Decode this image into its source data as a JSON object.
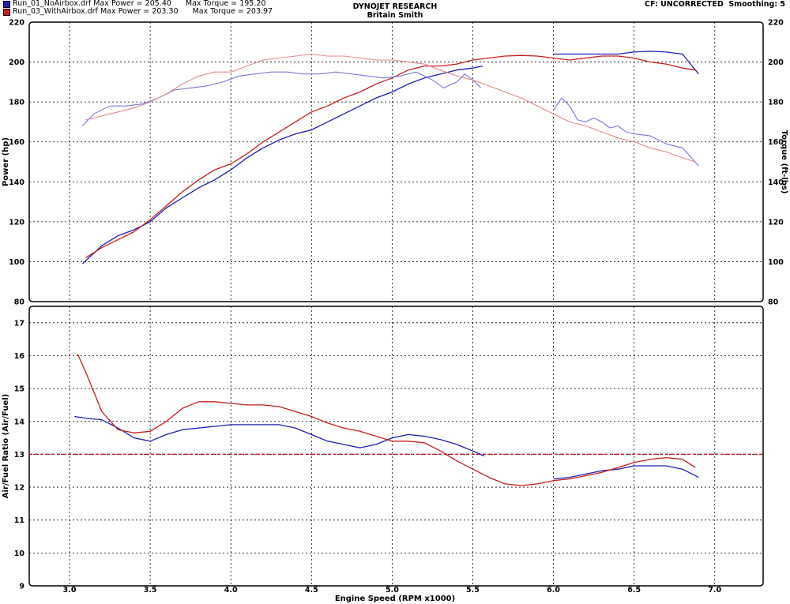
{
  "header": {
    "run1_file": "Run_01_NoAirbox.drf",
    "run1_power_label": "Max Power = 205.40",
    "run1_torque_label": "Max Torque = 195.20",
    "run2_file": "Run_03_WithAirbox.drf",
    "run2_power_label": "Max Power = 203.30",
    "run2_torque_label": "Max Torque = 203.97",
    "company": "DYNOJET RESEARCH",
    "operator": "Britain Smith",
    "cf": "CF: UNCORRECTED",
    "smoothing": "Smoothing: 5"
  },
  "colors": {
    "run1": "#1e1eb4",
    "run2": "#c81e1e",
    "run1_torque": "#7878dc",
    "run2_torque": "#e08c8c"
  },
  "chart_data": [
    {
      "type": "line",
      "title": "DYNOJET RESEARCH",
      "subtitle": "Britain Smith",
      "ylabel": "Power (hp)",
      "y2label": "Torque (ft-lbs)",
      "xlim": [
        2.75,
        7.3
      ],
      "ylim": [
        80,
        220
      ],
      "y2lim": [
        80,
        220
      ],
      "xticks": [
        "3.0",
        "3.5",
        "4.0",
        "4.5",
        "5.0",
        "5.5",
        "6.0",
        "6.5",
        "7.0"
      ],
      "yticks": [
        "80",
        "100",
        "120",
        "140",
        "160",
        "180",
        "200",
        "220"
      ],
      "grid": true,
      "series": [
        {
          "name": "Run_01_NoAirbox.drf",
          "metric": "power",
          "x": [
            3.08,
            3.2,
            3.3,
            3.4,
            3.5,
            3.6,
            3.7,
            3.8,
            3.9,
            4.0,
            4.1,
            4.2,
            4.3,
            4.4,
            4.5,
            4.6,
            4.7,
            4.8,
            4.9,
            5.0,
            5.1,
            5.2,
            5.3,
            5.4,
            5.5,
            5.56,
            6.0,
            6.1,
            6.2,
            6.3,
            6.4,
            6.5,
            6.6,
            6.7,
            6.8,
            6.9
          ],
          "y": [
            99,
            108,
            113,
            116,
            120,
            127,
            132,
            137,
            141,
            146,
            152,
            157,
            161,
            164,
            166,
            170,
            174,
            178,
            182,
            185,
            189,
            192,
            194,
            196,
            197,
            198,
            204,
            204,
            204,
            204,
            204,
            205,
            205.4,
            205,
            204,
            194
          ]
        },
        {
          "name": "Run_03_WithAirbox.drf",
          "metric": "power",
          "x": [
            3.1,
            3.2,
            3.3,
            3.4,
            3.5,
            3.6,
            3.7,
            3.8,
            3.9,
            4.0,
            4.1,
            4.2,
            4.3,
            4.4,
            4.5,
            4.6,
            4.7,
            4.8,
            4.9,
            5.0,
            5.1,
            5.2,
            5.3,
            5.4,
            5.5,
            5.6,
            5.7,
            5.8,
            5.9,
            6.0,
            6.1,
            6.2,
            6.3,
            6.4,
            6.5,
            6.6,
            6.7,
            6.8,
            6.88
          ],
          "y": [
            102,
            107,
            111,
            115,
            121,
            128,
            135,
            141,
            146,
            149,
            154,
            160,
            165,
            170,
            175,
            178,
            182,
            185,
            189,
            192,
            196,
            198,
            198,
            199,
            201,
            202,
            203,
            203.3,
            203,
            202,
            201,
            202,
            203,
            203,
            202,
            200,
            199,
            197,
            196
          ]
        },
        {
          "name": "Run_01_NoAirbox.drf",
          "metric": "torque",
          "x": [
            3.08,
            3.15,
            3.25,
            3.35,
            3.45,
            3.55,
            3.65,
            3.75,
            3.85,
            3.95,
            4.05,
            4.15,
            4.25,
            4.35,
            4.45,
            4.55,
            4.65,
            4.75,
            4.85,
            4.95,
            5.05,
            5.15,
            5.25,
            5.32,
            5.4,
            5.45,
            5.5,
            5.55,
            6.0,
            6.05,
            6.1,
            6.15,
            6.2,
            6.25,
            6.3,
            6.35,
            6.4,
            6.45,
            6.5,
            6.6,
            6.7,
            6.8,
            6.9
          ],
          "y": [
            168,
            174,
            178,
            178,
            179,
            182,
            186,
            187,
            188,
            190,
            193,
            194,
            195,
            195,
            194,
            194,
            195,
            194,
            193,
            192,
            193,
            195,
            191,
            187,
            190,
            194,
            191,
            187,
            176,
            182,
            178,
            171,
            170,
            172,
            170,
            167,
            168,
            165,
            164,
            163,
            159,
            157,
            148
          ]
        },
        {
          "name": "Run_03_WithAirbox.drf",
          "metric": "torque",
          "x": [
            3.1,
            3.2,
            3.3,
            3.4,
            3.5,
            3.6,
            3.7,
            3.8,
            3.9,
            4.0,
            4.1,
            4.2,
            4.3,
            4.4,
            4.5,
            4.6,
            4.7,
            4.8,
            4.9,
            5.0,
            5.1,
            5.2,
            5.3,
            5.4,
            5.5,
            5.6,
            5.7,
            5.8,
            5.9,
            6.0,
            6.1,
            6.2,
            6.3,
            6.4,
            6.5,
            6.6,
            6.7,
            6.8,
            6.88
          ],
          "y": [
            171,
            173,
            175,
            177,
            180,
            184,
            189,
            193,
            195,
            195,
            198,
            201,
            202,
            203,
            203.97,
            203,
            203,
            202,
            201,
            201,
            200,
            199,
            196,
            193,
            191,
            188,
            185,
            182,
            178,
            174,
            170,
            168,
            165,
            162,
            160,
            157,
            155,
            152,
            150
          ]
        }
      ]
    },
    {
      "type": "line",
      "xlabel": "Engine Speed (RPM x1000)",
      "ylabel": "Air/Fuel Ratio (Air/Fuel)",
      "xlim": [
        2.75,
        7.3
      ],
      "ylim": [
        9,
        17.5
      ],
      "xticks": [
        "3.0",
        "3.5",
        "4.0",
        "4.5",
        "5.0",
        "5.5",
        "6.0",
        "6.5",
        "7.0"
      ],
      "yticks": [
        "9",
        "10",
        "11",
        "12",
        "13",
        "14",
        "15",
        "16",
        "17"
      ],
      "grid": true,
      "reference_line": 13,
      "series": [
        {
          "name": "Run_01_NoAirbox.drf",
          "metric": "afr",
          "x": [
            3.03,
            3.1,
            3.2,
            3.3,
            3.4,
            3.5,
            3.6,
            3.7,
            3.8,
            3.9,
            4.0,
            4.1,
            4.2,
            4.3,
            4.4,
            4.5,
            4.6,
            4.7,
            4.8,
            4.9,
            5.0,
            5.1,
            5.2,
            5.3,
            5.4,
            5.5,
            5.57,
            6.0,
            6.1,
            6.2,
            6.3,
            6.4,
            6.5,
            6.6,
            6.7,
            6.8,
            6.9
          ],
          "y": [
            14.15,
            14.1,
            14.05,
            13.8,
            13.5,
            13.4,
            13.6,
            13.75,
            13.8,
            13.85,
            13.9,
            13.9,
            13.9,
            13.9,
            13.8,
            13.6,
            13.4,
            13.3,
            13.2,
            13.3,
            13.5,
            13.6,
            13.55,
            13.45,
            13.3,
            13.1,
            12.95,
            12.25,
            12.3,
            12.4,
            12.5,
            12.55,
            12.65,
            12.65,
            12.65,
            12.55,
            12.3
          ]
        },
        {
          "name": "Run_03_WithAirbox.drf",
          "metric": "afr",
          "x": [
            3.05,
            3.1,
            3.15,
            3.2,
            3.3,
            3.4,
            3.5,
            3.6,
            3.7,
            3.8,
            3.9,
            4.0,
            4.1,
            4.2,
            4.3,
            4.4,
            4.5,
            4.6,
            4.7,
            4.8,
            4.9,
            5.0,
            5.1,
            5.2,
            5.3,
            5.4,
            5.5,
            5.6,
            5.7,
            5.8,
            5.9,
            6.0,
            6.1,
            6.2,
            6.3,
            6.4,
            6.5,
            6.6,
            6.7,
            6.8,
            6.88
          ],
          "y": [
            16.05,
            15.5,
            14.9,
            14.3,
            13.75,
            13.65,
            13.7,
            14.0,
            14.4,
            14.6,
            14.6,
            14.55,
            14.5,
            14.5,
            14.45,
            14.3,
            14.15,
            13.95,
            13.8,
            13.7,
            13.55,
            13.4,
            13.4,
            13.35,
            13.1,
            12.8,
            12.55,
            12.3,
            12.1,
            12.05,
            12.1,
            12.2,
            12.25,
            12.35,
            12.45,
            12.6,
            12.75,
            12.85,
            12.9,
            12.85,
            12.6
          ]
        }
      ]
    }
  ]
}
